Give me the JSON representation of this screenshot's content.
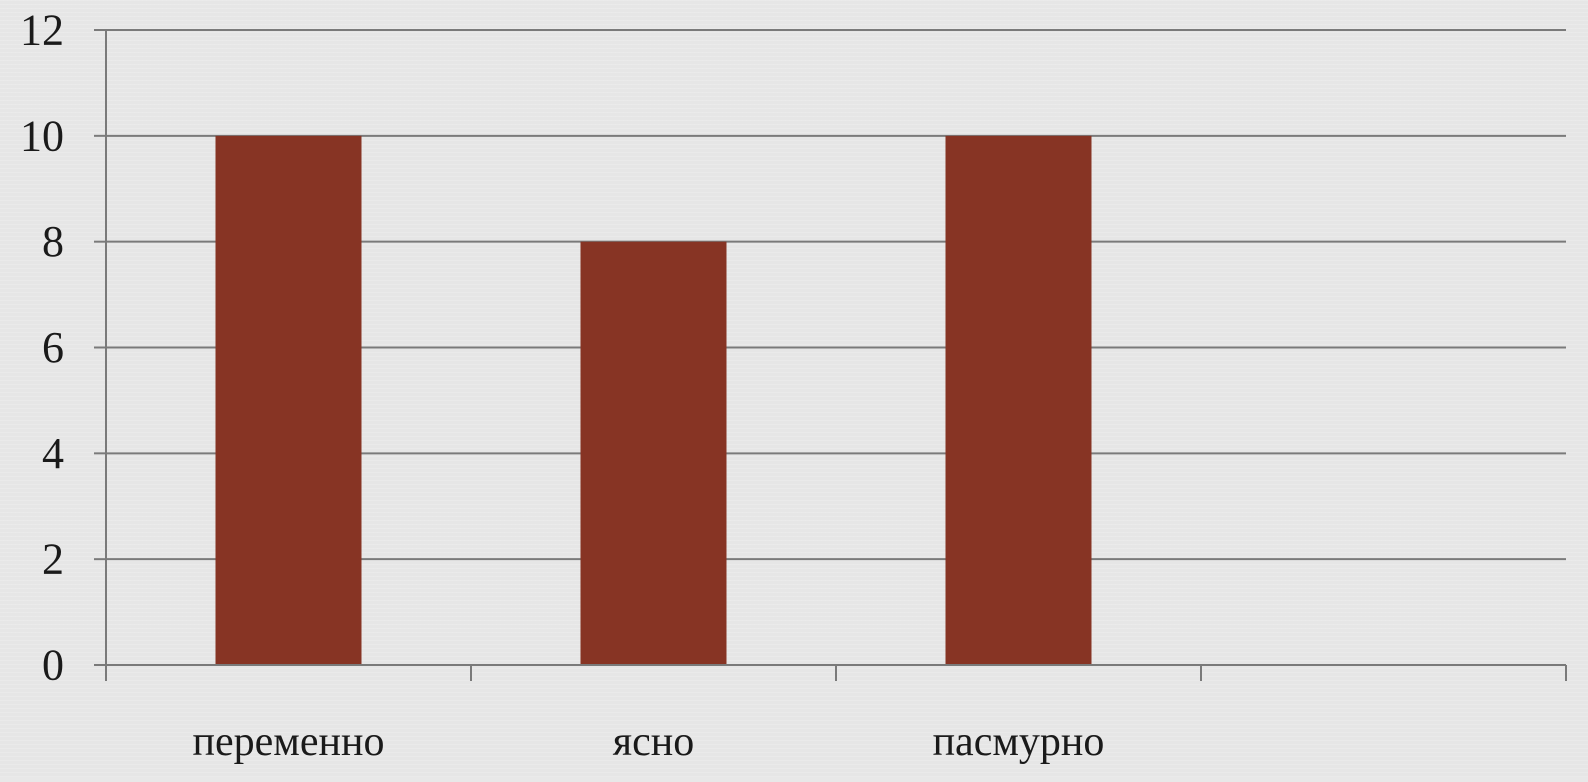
{
  "chart_data": {
    "type": "bar",
    "categories": [
      "переменно",
      "ясно",
      "пасмурно",
      ""
    ],
    "values": [
      10,
      8,
      10,
      null
    ],
    "ylim": [
      0,
      12
    ],
    "yticks": [
      0,
      2,
      4,
      6,
      8,
      10,
      12
    ],
    "grid": true,
    "legend": "none",
    "title": "",
    "xlabel": "",
    "ylabel": ""
  },
  "colors": {
    "bar": "#873424",
    "grid": "#7a7a7a",
    "axis": "#7a7a7a"
  }
}
